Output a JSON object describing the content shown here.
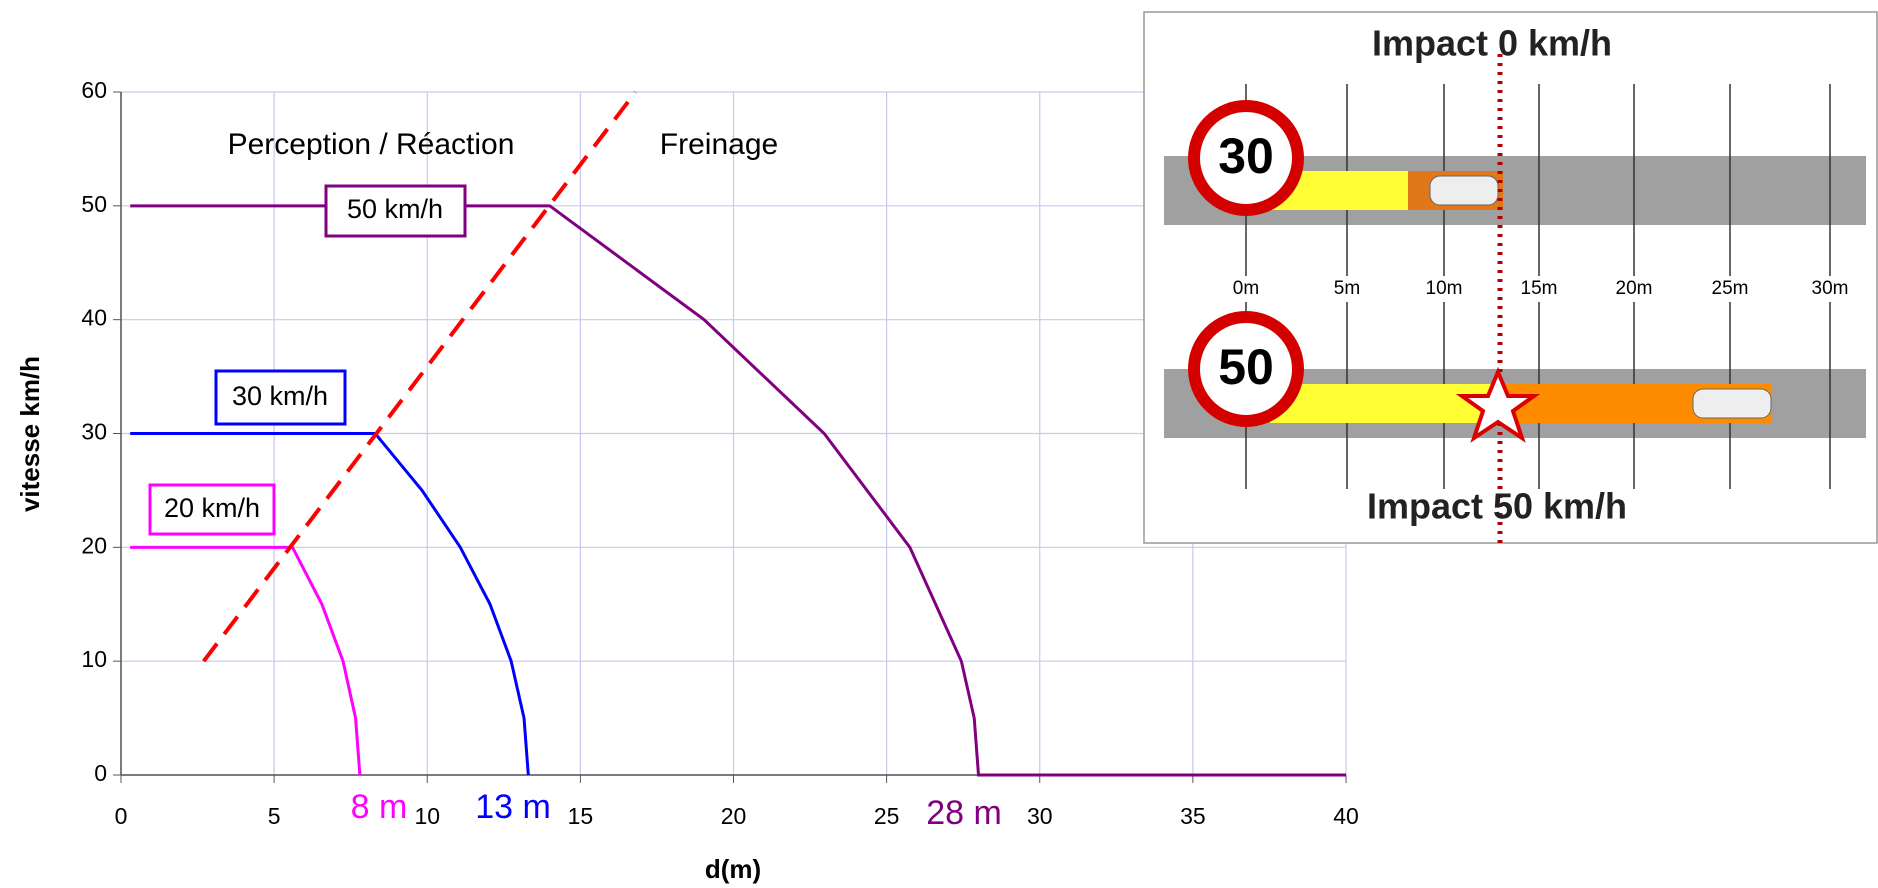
{
  "chart_data": {
    "type": "line",
    "x_label": "d(m)",
    "y_label": "vitesse km/h",
    "xlim": [
      0,
      40
    ],
    "ylim": [
      0,
      60
    ],
    "xticks": [
      0,
      5,
      10,
      15,
      20,
      25,
      30,
      35,
      40
    ],
    "yticks": [
      0,
      10,
      20,
      30,
      40,
      50,
      60
    ],
    "grid": true,
    "series": [
      {
        "color": "#ff00ff",
        "x": [
          0.3,
          5.6,
          6.56,
          7.25,
          7.66,
          7.8
        ],
        "values": [
          20,
          20,
          15,
          10,
          5,
          0
        ]
      },
      {
        "color": "#0000ff",
        "x": [
          0.3,
          8.3,
          9.83,
          11.08,
          12.05,
          12.74,
          13.16,
          13.3
        ],
        "values": [
          30,
          30,
          25,
          20,
          15,
          10,
          5,
          0
        ]
      },
      {
        "color": "#800080",
        "x": [
          0.3,
          14,
          19.04,
          22.96,
          25.76,
          27.44,
          27.86,
          28,
          40
        ],
        "values": [
          50,
          50,
          40,
          30,
          20,
          10,
          5,
          0,
          0
        ]
      },
      {
        "color": "#ff0000",
        "dashed": true,
        "x": [
          2.7,
          16.8
        ],
        "values": [
          10,
          60
        ]
      }
    ],
    "annotations": [
      "Perception / Réaction",
      "Freinage",
      "50 km/h",
      "30 km/h",
      "20 km/h",
      "8 m",
      "13 m",
      "28 m"
    ]
  },
  "inset": {
    "top_title": "Impact 0 km/h",
    "bottom_title": "Impact 50 km/h",
    "signs": [
      "30",
      "50"
    ],
    "ruler": [
      "0m",
      "5m",
      "10m",
      "15m",
      "20m",
      "25m",
      "30m"
    ]
  }
}
